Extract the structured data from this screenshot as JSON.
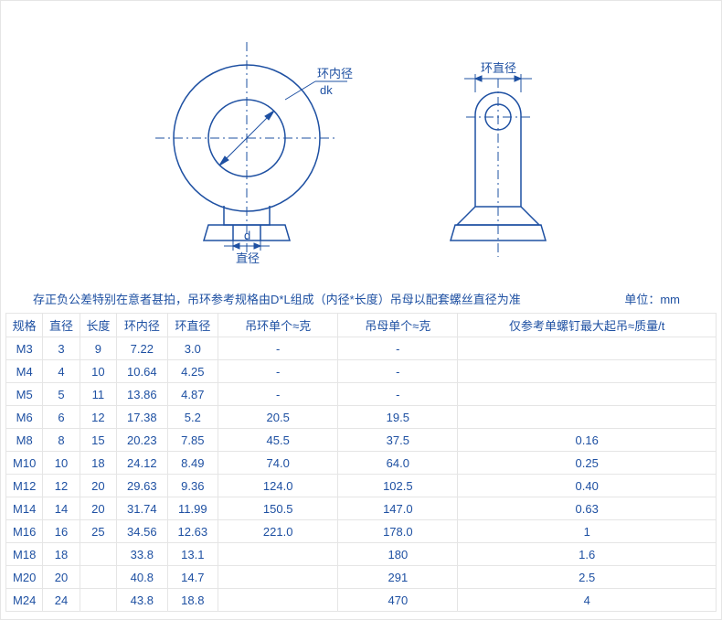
{
  "colors": {
    "line": "#1e50a2",
    "grid": "#e5e5e5",
    "text": "#1e50a2",
    "background": "#ffffff"
  },
  "diagram": {
    "front": {
      "label_inner_dia": "环内径",
      "label_dk": "dk",
      "label_d": "d",
      "label_diameter": "直径"
    },
    "side": {
      "label_ring_dia": "环直径"
    },
    "stroke_width": 1.5,
    "centerline_dash": "8 4 2 4"
  },
  "caption_main": "存正负公差特别在意者甚拍，吊环参考规格由D*L组成（内径*长度）吊母以配套螺丝直径为准",
  "caption_unit": "单位：mm",
  "table": {
    "headers": [
      "规格",
      "直径",
      "长度",
      "环内径",
      "环直径",
      "吊环单个≈克",
      "吊母单个≈克",
      "仅参考单螺钉最大起吊≈质量/t"
    ],
    "rows": [
      [
        "M3",
        "3",
        "9",
        "7.22",
        "3.0",
        "-",
        "-",
        ""
      ],
      [
        "M4",
        "4",
        "10",
        "10.64",
        "4.25",
        "-",
        "-",
        ""
      ],
      [
        "M5",
        "5",
        "11",
        "13.86",
        "4.87",
        "-",
        "-",
        ""
      ],
      [
        "M6",
        "6",
        "12",
        "17.38",
        "5.2",
        "20.5",
        "19.5",
        ""
      ],
      [
        "M8",
        "8",
        "15",
        "20.23",
        "7.85",
        "45.5",
        "37.5",
        "0.16"
      ],
      [
        "M10",
        "10",
        "18",
        "24.12",
        "8.49",
        "74.0",
        "64.0",
        "0.25"
      ],
      [
        "M12",
        "12",
        "20",
        "29.63",
        "9.36",
        "124.0",
        "102.5",
        "0.40"
      ],
      [
        "M14",
        "14",
        "20",
        "31.74",
        "11.99",
        "150.5",
        "147.0",
        "0.63"
      ],
      [
        "M16",
        "16",
        "25",
        "34.56",
        "12.63",
        "221.0",
        "178.0",
        "1"
      ],
      [
        "M18",
        "18",
        "",
        "33.8",
        "13.1",
        "",
        "180",
        "1.6"
      ],
      [
        "M20",
        "20",
        "",
        "40.8",
        "14.7",
        "",
        "291",
        "2.5"
      ],
      [
        "M24",
        "24",
        "",
        "43.8",
        "18.8",
        "",
        "470",
        "4"
      ]
    ]
  }
}
